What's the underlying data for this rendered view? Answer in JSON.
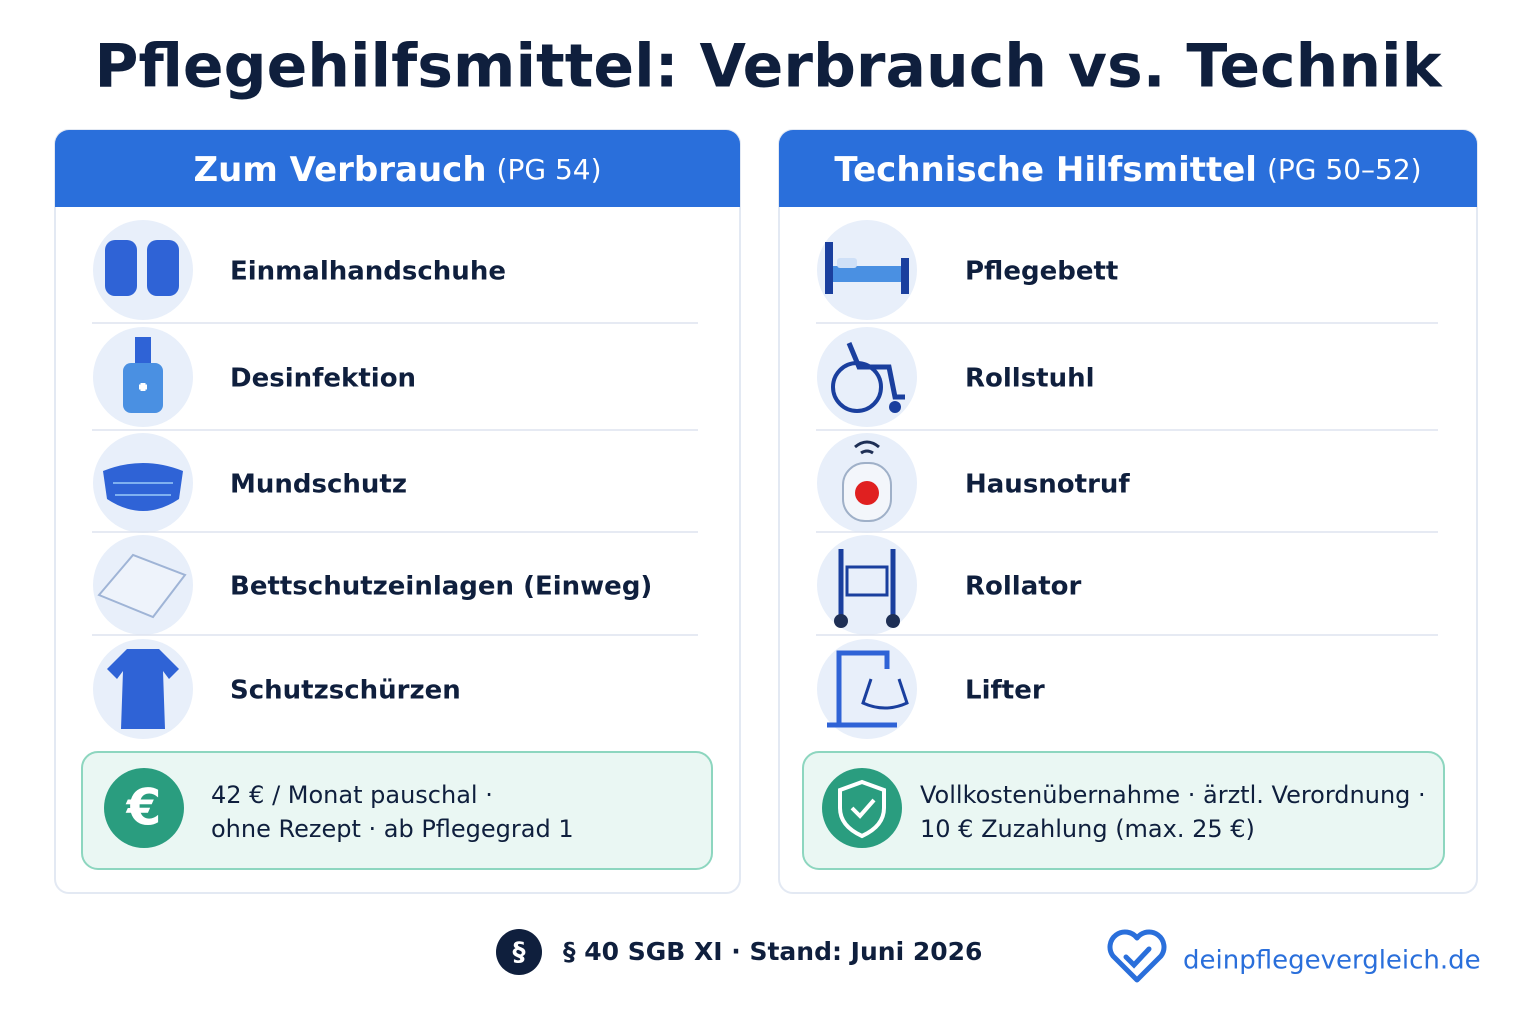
{
  "header": {
    "title": "Pflegehilfsmittel: Verbrauch vs. Technik"
  },
  "columns": [
    {
      "title": "Zum Verbrauch",
      "suffix": "(PG 54)",
      "items": [
        "Einmalhandschuhe",
        "Desinfektion",
        "Mundschutz",
        "Bettschutzeinlagen (Einweg)",
        "Schutzschürzen"
      ],
      "note": {
        "icon": "€",
        "lines": [
          "42 € / Monat pauschal ·",
          "ohne Rezept · ab Pflegegrad 1"
        ]
      }
    },
    {
      "title": "Technische Hilfsmittel",
      "suffix": "(PG 50–52)",
      "items": [
        "Pflegebett",
        "Rollstuhl",
        "Hausnotruf",
        "Rollator",
        "Lifter"
      ],
      "note": {
        "icon": null,
        "lines": [
          "Vollkostenübernahme · ärztl. Verordnung ·",
          "10 € Zuzahlung (max. 25 €)"
        ]
      }
    }
  ],
  "footer": {
    "icon": "§",
    "legal": "§ 40 SGB XI · Stand: Juni 2026",
    "brand": "deinpflegevergleich.de"
  }
}
